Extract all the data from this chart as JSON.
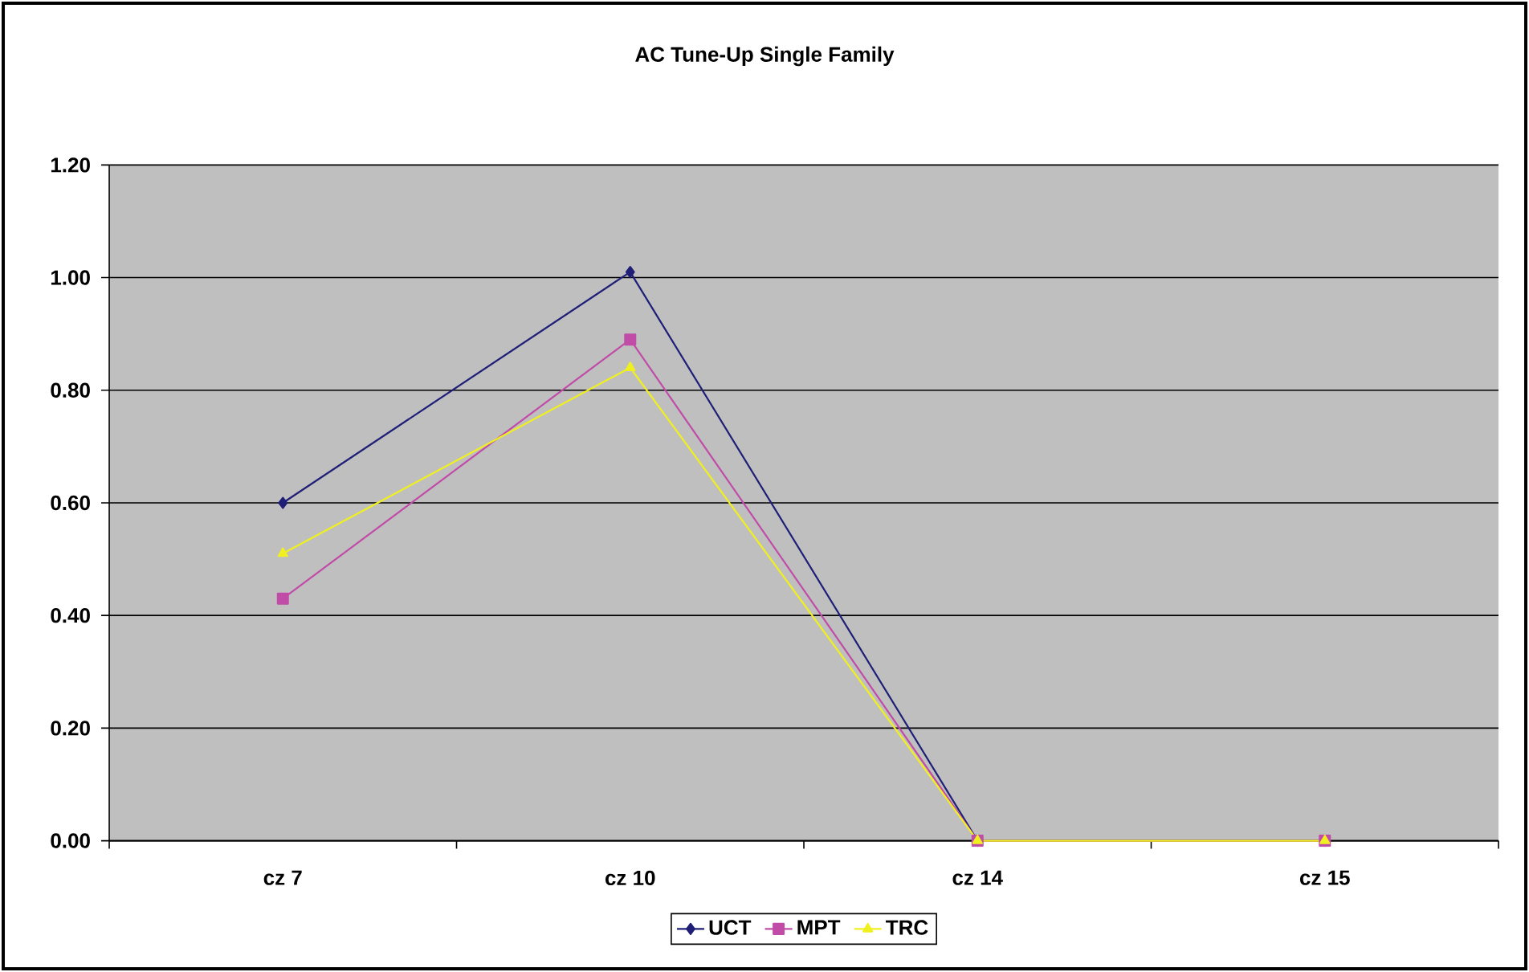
{
  "chart_data": {
    "type": "line",
    "title": "AC Tune-Up Single Family",
    "categories": [
      "cz 7",
      "cz 10",
      "cz 14",
      "cz 15"
    ],
    "series": [
      {
        "name": "UCT",
        "color": "#1f1f78",
        "marker": "diamond",
        "values": [
          0.6,
          1.01,
          0,
          0
        ]
      },
      {
        "name": "MPT",
        "color": "#c04ca8",
        "marker": "square",
        "values": [
          0.43,
          0.89,
          0,
          0
        ]
      },
      {
        "name": "TRC",
        "color": "#f0f020",
        "marker": "triangle",
        "values": [
          0.51,
          0.84,
          0,
          0
        ]
      }
    ],
    "ylim": [
      0,
      1.2
    ],
    "yticks": [
      {
        "value": 0,
        "label": "0.00"
      },
      {
        "value": 0.2,
        "label": "0.20"
      },
      {
        "value": 0.4,
        "label": "0.40"
      },
      {
        "value": 0.6,
        "label": "0.60"
      },
      {
        "value": 0.8,
        "label": "0.80"
      },
      {
        "value": 1.0,
        "label": "1.00"
      },
      {
        "value": 1.2,
        "label": "1.20"
      }
    ],
    "grid": "y",
    "legend": "bottom",
    "line_style": "solid"
  }
}
